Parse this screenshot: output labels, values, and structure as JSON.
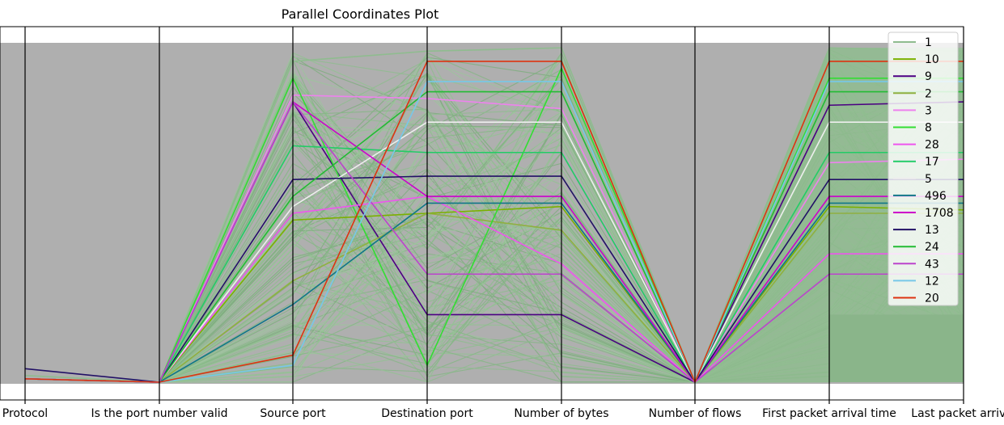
{
  "chart_data": {
    "type": "parallel-coordinates",
    "title": "Parallel Coordinates Plot",
    "axes": [
      "Protocol",
      "Is the port number valid",
      "Source port",
      "Destination port",
      "Number of bytes",
      "Number of flows",
      "First packet arrival time",
      "Last packet arrival"
    ],
    "legend_position": "top-right",
    "grid": false,
    "series": [
      {
        "name": "1",
        "color": "#8fbc8f",
        "values": [
          0.02,
          0.0,
          0.95,
          0.98,
          0.99,
          0.0,
          0.99,
          0.98
        ]
      },
      {
        "name": "10",
        "color": "#7cb000",
        "values": [
          0.01,
          0.0,
          0.48,
          0.5,
          0.52,
          0.0,
          0.52,
          0.51
        ]
      },
      {
        "name": "9",
        "color": "#4b0082",
        "values": [
          0.01,
          0.0,
          0.83,
          0.2,
          0.2,
          0.0,
          0.82,
          0.83
        ]
      },
      {
        "name": "2",
        "color": "#8fb040",
        "values": [
          0.01,
          0.0,
          0.3,
          0.5,
          0.45,
          0.0,
          0.5,
          0.5
        ]
      },
      {
        "name": "3",
        "color": "#ee82ee",
        "values": [
          0.01,
          0.0,
          0.85,
          0.84,
          0.81,
          0.0,
          0.65,
          0.66
        ]
      },
      {
        "name": "8",
        "color": "#33dd33",
        "values": [
          0.01,
          0.0,
          0.9,
          0.05,
          0.93,
          0.0,
          0.9,
          0.9
        ]
      },
      {
        "name": "28",
        "color": "#ee55ee",
        "values": [
          0.01,
          0.0,
          0.5,
          0.55,
          0.35,
          0.0,
          0.38,
          0.38
        ]
      },
      {
        "name": "17",
        "color": "#22cc66",
        "values": [
          0.01,
          0.0,
          0.7,
          0.68,
          0.68,
          0.0,
          0.68,
          0.68
        ]
      },
      {
        "name": "5",
        "color": "#eeeeee",
        "values": [
          0.01,
          0.0,
          0.52,
          0.77,
          0.77,
          0.0,
          0.77,
          0.77
        ]
      },
      {
        "name": "496",
        "color": "#117788",
        "values": [
          0.01,
          0.0,
          0.23,
          0.53,
          0.53,
          0.0,
          0.53,
          0.53
        ]
      },
      {
        "name": "1708",
        "color": "#cc00cc",
        "values": [
          0.01,
          0.0,
          0.83,
          0.55,
          0.55,
          0.0,
          0.55,
          0.55
        ]
      },
      {
        "name": "13",
        "color": "#221166",
        "values": [
          0.04,
          0.0,
          0.6,
          0.61,
          0.61,
          0.0,
          0.6,
          0.6
        ]
      },
      {
        "name": "24",
        "color": "#22bb33",
        "values": [
          0.01,
          0.0,
          0.55,
          0.86,
          0.86,
          0.0,
          0.86,
          0.86
        ]
      },
      {
        "name": "43",
        "color": "#bb44cc",
        "values": [
          0.01,
          0.0,
          0.83,
          0.32,
          0.32,
          0.0,
          0.32,
          0.32
        ]
      },
      {
        "name": "12",
        "color": "#77c8e8",
        "values": [
          0.01,
          0.0,
          0.05,
          0.89,
          0.89,
          0.0,
          0.89,
          0.89
        ]
      },
      {
        "name": "20",
        "color": "#dd3311",
        "values": [
          0.01,
          0.0,
          0.08,
          0.95,
          0.95,
          0.0,
          0.95,
          0.95
        ]
      }
    ]
  }
}
